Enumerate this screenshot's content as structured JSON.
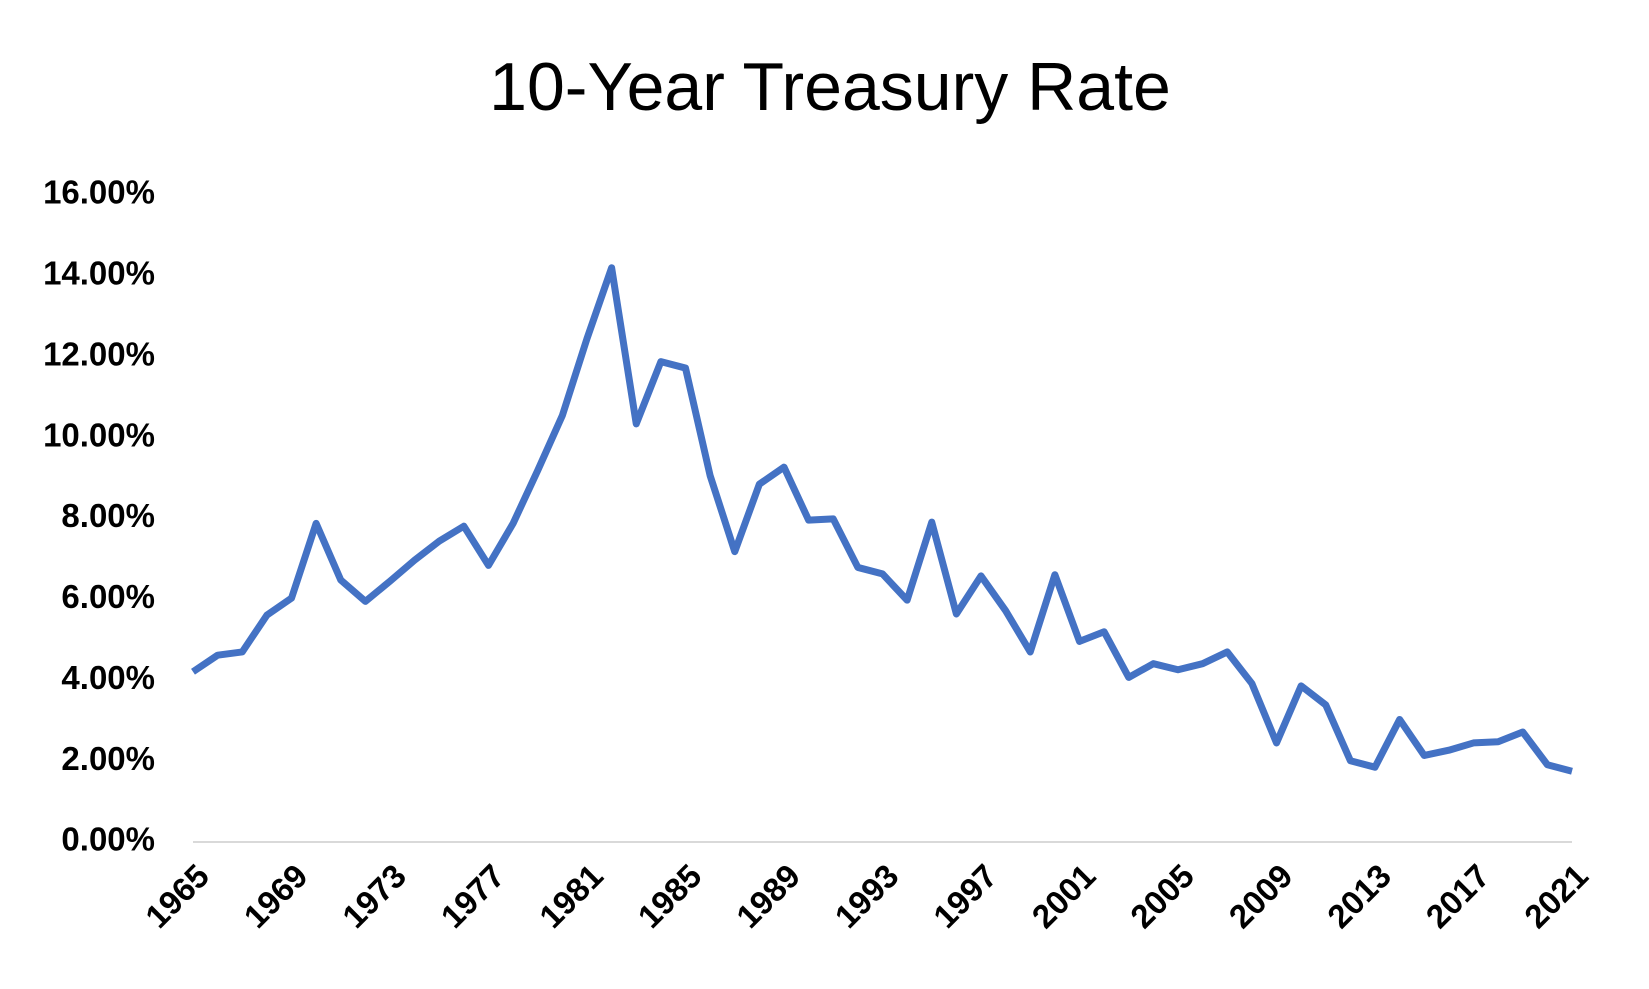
{
  "chart_data": {
    "type": "line",
    "title": "10-Year Treasury Rate",
    "x": [
      1965,
      1966,
      1967,
      1968,
      1969,
      1970,
      1971,
      1972,
      1973,
      1974,
      1975,
      1976,
      1977,
      1978,
      1979,
      1980,
      1981,
      1982,
      1983,
      1984,
      1985,
      1986,
      1987,
      1988,
      1989,
      1990,
      1991,
      1992,
      1993,
      1994,
      1995,
      1996,
      1997,
      1998,
      1999,
      2000,
      2001,
      2002,
      2003,
      2004,
      2005,
      2006,
      2007,
      2008,
      2009,
      2010,
      2011,
      2012,
      2013,
      2014,
      2015,
      2016,
      2017,
      2018,
      2019,
      2020,
      2021
    ],
    "series": [
      {
        "color": "#4472c4",
        "values": [
          4.21,
          4.62,
          4.7,
          5.61,
          6.03,
          7.88,
          6.48,
          5.95,
          6.45,
          6.97,
          7.44,
          7.81,
          6.84,
          7.88,
          9.19,
          10.55,
          12.45,
          14.2,
          10.34,
          11.88,
          11.72,
          9.06,
          7.18,
          8.85,
          9.27,
          7.96,
          7.99,
          6.79,
          6.63,
          5.98,
          7.91,
          5.64,
          6.58,
          5.72,
          4.7,
          6.61,
          4.96,
          5.2,
          4.07,
          4.41,
          4.26,
          4.41,
          4.7,
          3.92,
          2.45,
          3.86,
          3.39,
          2.01,
          1.85,
          3.03,
          2.14,
          2.27,
          2.45,
          2.48,
          2.72,
          1.91,
          1.75
        ]
      }
    ],
    "xlim": [
      1965,
      2021
    ],
    "xticks": [
      1965,
      1969,
      1973,
      1977,
      1981,
      1985,
      1989,
      1993,
      1997,
      2001,
      2005,
      2009,
      2013,
      2017,
      2021
    ],
    "ylim": [
      0,
      16
    ],
    "yticks": [
      {
        "value": 0,
        "label": "0.00%"
      },
      {
        "value": 2,
        "label": "2.00%"
      },
      {
        "value": 4,
        "label": "4.00%"
      },
      {
        "value": 6,
        "label": "6.00%"
      },
      {
        "value": 8,
        "label": "8.00%"
      },
      {
        "value": 10,
        "label": "10.00%"
      },
      {
        "value": 12,
        "label": "12.00%"
      },
      {
        "value": 14,
        "label": "14.00%"
      },
      {
        "value": 16,
        "label": "16.00%"
      }
    ],
    "grid": false
  }
}
